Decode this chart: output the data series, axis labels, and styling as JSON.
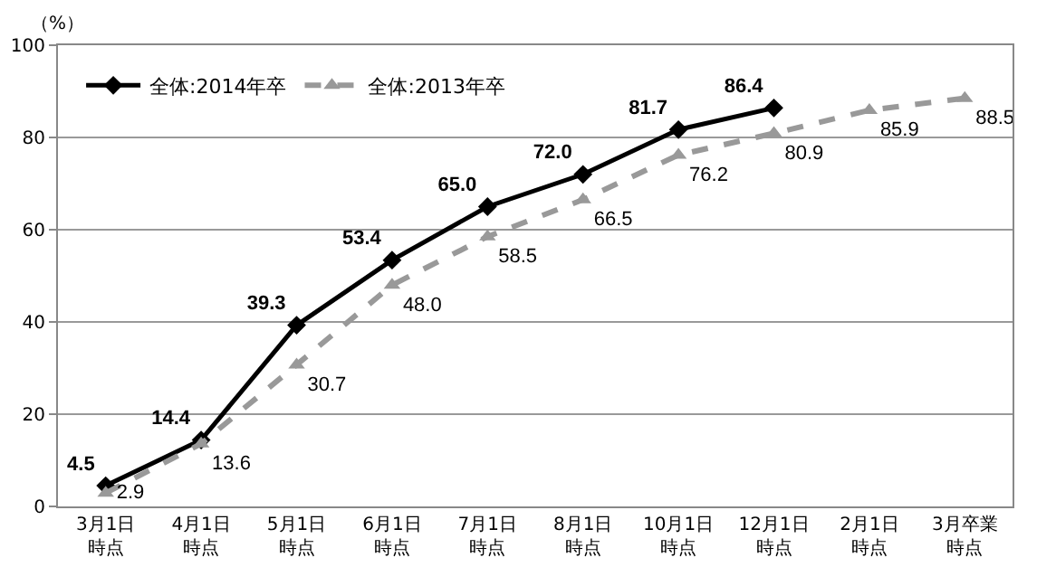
{
  "chart_data": {
    "type": "line",
    "ylabel": "（%）",
    "categories": [
      "3月1日時点",
      "4月1日時点",
      "5月1日時点",
      "6月1日時点",
      "7月1日時点",
      "8月1日時点",
      "10月1日時点",
      "12月1日時点",
      "2月1日時点",
      "3月卒業時点"
    ],
    "series": [
      {
        "name": "全体:2014年卒",
        "color": "#000000",
        "marker": "diamond",
        "line_style": "solid",
        "values": [
          4.5,
          14.4,
          39.3,
          53.4,
          65.0,
          72.0,
          81.7,
          86.4,
          null,
          null
        ],
        "value_labels": [
          "4.5",
          "14.4",
          "39.3",
          "53.4",
          "65.0",
          "72.0",
          "81.7",
          "86.4",
          null,
          null
        ]
      },
      {
        "name": "全体:2013年卒",
        "color": "#999999",
        "marker": "triangle",
        "line_style": "dashed",
        "values": [
          2.9,
          13.6,
          30.7,
          48.0,
          58.5,
          66.5,
          76.2,
          80.9,
          85.9,
          88.5
        ],
        "value_labels": [
          "2.9",
          "13.6",
          "30.7",
          "48.0",
          "58.5",
          "66.5",
          "76.2",
          "80.9",
          "85.9",
          "88.5"
        ]
      }
    ],
    "ylim": [
      0,
      100
    ],
    "yticks": [
      0,
      20,
      40,
      60,
      80,
      100
    ],
    "grid": "y",
    "legend": "top left"
  }
}
